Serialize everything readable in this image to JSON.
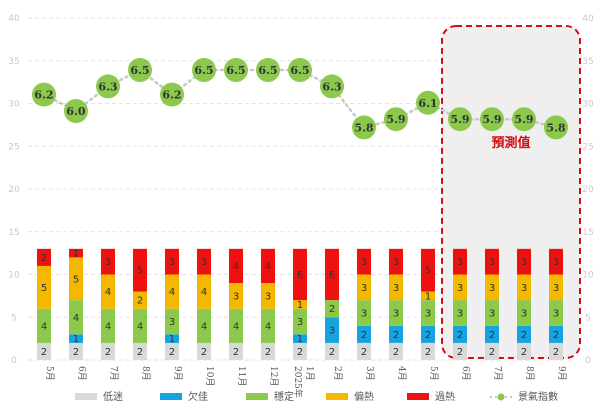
{
  "chart_data": {
    "type": "bar",
    "subtype": "stacked-bar-with-line",
    "categories": [
      "5月",
      "6月",
      "7月",
      "8月",
      "9月",
      "10月",
      "11月",
      "12月",
      "2025年1月",
      "2月",
      "3月",
      "4月",
      "5月",
      "6月",
      "7月",
      "8月",
      "9月"
    ],
    "ylim": [
      0,
      40
    ],
    "yticks": [
      0,
      5,
      10,
      15,
      20,
      25,
      30,
      35,
      40
    ],
    "grid": true,
    "series": [
      {
        "name": "低迷",
        "color": "#d9d9d9",
        "values": [
          2,
          2,
          2,
          2,
          2,
          2,
          2,
          2,
          2,
          2,
          2,
          2,
          2,
          2,
          2,
          2,
          2
        ]
      },
      {
        "name": "欠佳",
        "color": "#17a2e0",
        "values": [
          0,
          1,
          0,
          0,
          1,
          0,
          0,
          0,
          1,
          3,
          2,
          2,
          2,
          2,
          2,
          2,
          2
        ]
      },
      {
        "name": "穩定",
        "color": "#8cc84b",
        "values": [
          4,
          4,
          4,
          4,
          3,
          4,
          4,
          4,
          3,
          2,
          3,
          3,
          3,
          3,
          3,
          3,
          3
        ]
      },
      {
        "name": "偏熱",
        "color": "#f5b800",
        "values": [
          5,
          5,
          4,
          2,
          4,
          4,
          3,
          3,
          1,
          0,
          3,
          3,
          1,
          3,
          3,
          3,
          3
        ]
      },
      {
        "name": "過熱",
        "color": "#ee1111",
        "values": [
          2,
          1,
          3,
          5,
          3,
          3,
          4,
          4,
          6,
          6,
          3,
          3,
          5,
          3,
          3,
          3,
          3
        ]
      }
    ],
    "line": {
      "name": "景氣指數",
      "color": "#8cc84b",
      "values": [
        6.2,
        6.0,
        6.3,
        6.5,
        6.2,
        6.5,
        6.5,
        6.5,
        6.5,
        6.3,
        5.8,
        5.9,
        6.1,
        5.9,
        5.9,
        5.9,
        5.8
      ],
      "labels": [
        "6.2",
        "6.0",
        "6.3",
        "6.5",
        "6.2",
        "6.5",
        "6.5",
        "6.5",
        "6.5",
        "6.3",
        "5.8",
        "5.9",
        "6.1",
        "5.9",
        "5.9",
        "5.9",
        "5.8"
      ]
    },
    "forecast": {
      "label": "預測值",
      "start_index": 13,
      "end_index": 16
    },
    "legend": [
      "低迷",
      "欠佳",
      "穩定",
      "偏熱",
      "過熱",
      "景氣指數"
    ],
    "legend_position": "bottom"
  }
}
